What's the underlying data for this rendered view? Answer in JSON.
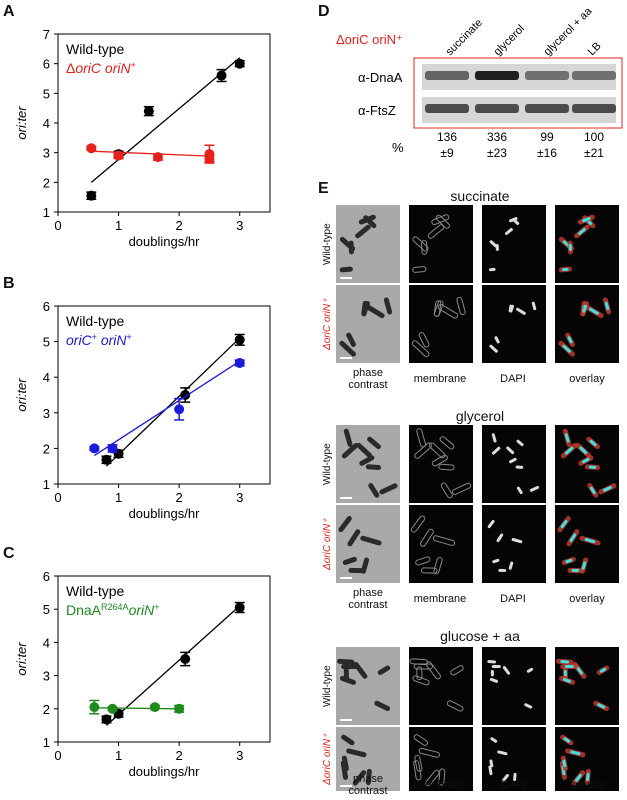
{
  "panels": {
    "A": "A",
    "B": "B",
    "C": "C",
    "D": "D",
    "E": "E"
  },
  "charts_text": {
    "ylabel": "ori:ter",
    "xlabel": "doublings/hr"
  },
  "chart_data": [
    {
      "type": "scatter",
      "xlabel": "doublings/hr",
      "ylabel": "ori:ter",
      "xlim": [
        0,
        3.5
      ],
      "ylim": [
        1,
        7
      ],
      "xticks": [
        0,
        1,
        2,
        3
      ],
      "yticks": [
        1,
        2,
        3,
        4,
        5,
        6,
        7
      ],
      "legend": [
        "Wild-type",
        "ΔoriC oriN⁺"
      ],
      "series": [
        {
          "name": "Wild-type",
          "color": "#000000",
          "x": [
            0.55,
            1.0,
            1.5,
            2.7,
            3.0
          ],
          "y": [
            1.55,
            2.95,
            4.4,
            5.6,
            6.0
          ],
          "err": [
            0.12,
            0.1,
            0.15,
            0.2,
            0.1
          ],
          "fit": [
            [
              0.55,
              2.0
            ],
            [
              3.0,
              6.2
            ]
          ]
        },
        {
          "name": "ΔoriC oriN⁺",
          "color": "#e8201b",
          "x": [
            0.55,
            1.0,
            1.65,
            2.5,
            2.5
          ],
          "y": [
            3.15,
            2.9,
            2.85,
            2.95,
            2.8
          ],
          "err": [
            0.06,
            0.1,
            0.1,
            0.3,
            0.1
          ],
          "fit": [
            [
              0.55,
              3.05
            ],
            [
              2.55,
              2.88
            ]
          ]
        }
      ]
    },
    {
      "type": "scatter",
      "xlabel": "doublings/hr",
      "ylabel": "ori:ter",
      "xlim": [
        0,
        3.5
      ],
      "ylim": [
        1,
        6
      ],
      "xticks": [
        0,
        1,
        2,
        3
      ],
      "yticks": [
        1,
        2,
        3,
        4,
        5,
        6
      ],
      "legend": [
        "Wild-type",
        "oriC⁺ oriN⁺"
      ],
      "series": [
        {
          "name": "Wild-type",
          "color": "#000000",
          "x": [
            0.8,
            1.0,
            2.1,
            3.0
          ],
          "y": [
            1.68,
            1.85,
            3.5,
            5.05
          ],
          "err": [
            0.1,
            0.1,
            0.2,
            0.15
          ],
          "fit": [
            [
              0.8,
              1.5
            ],
            [
              3.0,
              5.1
            ]
          ]
        },
        {
          "name": "oriC⁺ oriN⁺",
          "color": "#1a1adb",
          "x": [
            0.6,
            0.9,
            2.0,
            3.0
          ],
          "y": [
            2.0,
            2.0,
            3.1,
            4.4
          ],
          "err": [
            0.05,
            0.1,
            0.3,
            0.08
          ],
          "fit": [
            [
              0.6,
              1.8
            ],
            [
              3.0,
              4.45
            ]
          ]
        }
      ]
    },
    {
      "type": "scatter",
      "xlabel": "doublings/hr",
      "ylabel": "ori:ter",
      "xlim": [
        0,
        3.5
      ],
      "ylim": [
        1,
        6
      ],
      "xticks": [
        0,
        1,
        2,
        3
      ],
      "yticks": [
        1,
        2,
        3,
        4,
        5,
        6
      ],
      "legend": [
        "Wild-type",
        "DnaAR264A oriN⁺"
      ],
      "series": [
        {
          "name": "Wild-type",
          "color": "#000000",
          "x": [
            0.8,
            1.0,
            2.1,
            3.0
          ],
          "y": [
            1.68,
            1.85,
            3.5,
            5.05
          ],
          "err": [
            0.1,
            0.1,
            0.2,
            0.15
          ],
          "fit": [
            [
              0.8,
              1.5
            ],
            [
              3.0,
              5.1
            ]
          ]
        },
        {
          "name": "DnaAR264A oriN⁺",
          "color": "#1e8a1e",
          "x": [
            0.6,
            0.9,
            1.6,
            2.0
          ],
          "y": [
            2.05,
            2.0,
            2.05,
            2.0
          ],
          "err": [
            0.2,
            0.05,
            0.05,
            0.1
          ],
          "fit": [
            [
              0.6,
              2.03
            ],
            [
              2.0,
              2.0
            ]
          ]
        }
      ]
    }
  ],
  "blot": {
    "strain_label": "ΔoriC oriN⁺",
    "lanes": [
      "succinate",
      "glycerol",
      "glycerol + aa",
      "LB"
    ],
    "rows": [
      "α-DnaA",
      "α-FtsZ"
    ],
    "percent_label": "%",
    "percent_values": [
      "136",
      "336",
      "99",
      "100"
    ],
    "percent_errors": [
      "±9",
      "±23",
      "±16",
      "±21"
    ],
    "dnaa_relative_levels": [
      136,
      336,
      99,
      100
    ]
  },
  "microscopy": {
    "conditions": [
      "succinate",
      "glycerol",
      "glucose + aa"
    ],
    "row_labels": [
      "Wild-type",
      "ΔoriC oriN⁺"
    ],
    "columns": [
      "phase contrast",
      "membrane",
      "DAPI",
      "overlay"
    ],
    "colors": {
      "membrane": "#c0392b",
      "dapi": "#3ee0e0"
    }
  }
}
